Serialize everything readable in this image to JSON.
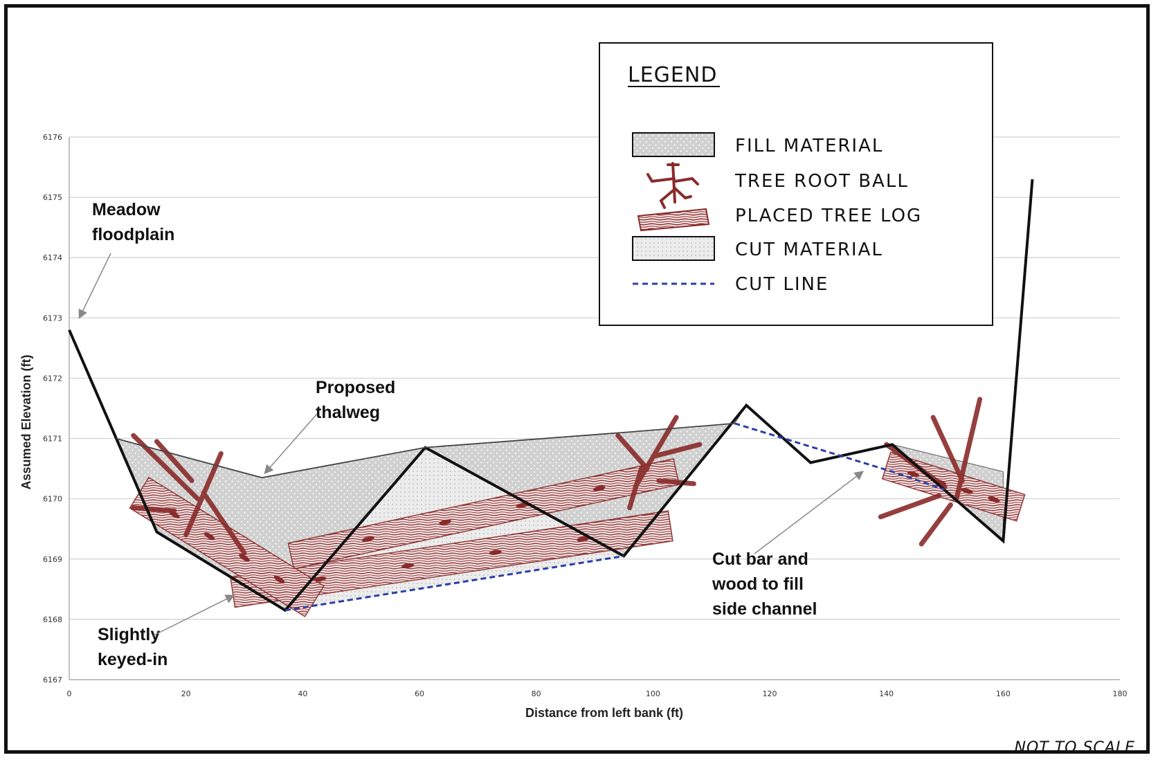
{
  "chart_data": {
    "type": "line",
    "title": "",
    "xlabel": "Distance from left bank (ft)",
    "ylabel": "Assumed Elevation (ft)",
    "xlim": [
      0,
      180
    ],
    "ylim": [
      6167,
      6176
    ],
    "x_ticks": [
      "0",
      "20",
      "40",
      "60",
      "80",
      "100",
      "120",
      "140",
      "160",
      "180"
    ],
    "y_ticks": [
      "6167",
      "6168",
      "6169",
      "6170",
      "6171",
      "6172",
      "6173",
      "6174",
      "6175",
      "6176"
    ],
    "grid": "horizontal",
    "legend_position": "top-right",
    "series": [
      {
        "role": "existing-ground",
        "x": [
          0,
          15,
          37,
          61,
          95,
          116,
          127,
          141,
          160,
          165
        ],
        "y": [
          6172.8,
          6169.45,
          6168.15,
          6170.85,
          6169.05,
          6171.55,
          6170.6,
          6170.9,
          6169.3,
          6175.3
        ]
      },
      {
        "role": "proposed-thalweg",
        "x": [
          8,
          33,
          61,
          95,
          114
        ],
        "y": [
          6171.0,
          6170.35,
          6170.85,
          6171.1,
          6171.25
        ]
      },
      {
        "role": "cut-line",
        "x": [
          37,
          95
        ],
        "y": [
          6168.15,
          6169.05
        ]
      },
      {
        "role": "cut-line",
        "x": [
          114,
          141,
          150
        ],
        "y": [
          6171.25,
          6170.45,
          6170.15
        ]
      }
    ],
    "regions": [
      {
        "role": "fill-material",
        "x": [
          8,
          33,
          61,
          95,
          114,
          116,
          95,
          61,
          37,
          15
        ],
        "y": [
          6171.0,
          6170.35,
          6170.85,
          6171.1,
          6171.25,
          6171.55,
          6169.05,
          6170.85,
          6168.15,
          6169.45
        ]
      },
      {
        "role": "fill-material",
        "x": [
          141,
          160,
          160,
          150,
          141
        ],
        "y": [
          6170.9,
          6170.45,
          6169.3,
          6170.15,
          6170.45
        ]
      }
    ],
    "annotations": [
      {
        "text_lines": [
          "Meadow",
          "floodplain"
        ],
        "arrow_to": [
          1,
          6172.9
        ]
      },
      {
        "text_lines": [
          "Proposed",
          "thalweg"
        ],
        "arrow_to": [
          33,
          6170.35
        ]
      },
      {
        "text_lines": [
          "Slightly",
          "keyed-in"
        ],
        "arrow_to": [
          28,
          6168.4
        ]
      },
      {
        "text_lines": [
          "Cut bar and",
          "wood to fill",
          "side channel"
        ],
        "arrow_to": [
          136,
          6170.5
        ]
      }
    ]
  },
  "legend": {
    "title": "LEGEND",
    "items": [
      {
        "label": "FILL MATERIAL",
        "symbol": "fill-box-icon"
      },
      {
        "label": "TREE ROOT BALL",
        "symbol": "tree-root-ball-icon"
      },
      {
        "label": "PLACED TREE LOG",
        "symbol": "tree-log-icon"
      },
      {
        "label": "CUT MATERIAL",
        "symbol": "cut-box-icon"
      },
      {
        "label": "CUT LINE",
        "symbol": "cut-line-icon"
      }
    ]
  },
  "footer_note": "NOT TO SCALE",
  "colors": {
    "ground_line": "#111111",
    "fill_material": "#d2d2d2",
    "cut_material": "#ececec",
    "wood": "#8a2a2a",
    "cut_line": "#2a3fa8",
    "grid": "#d0d0d0"
  }
}
